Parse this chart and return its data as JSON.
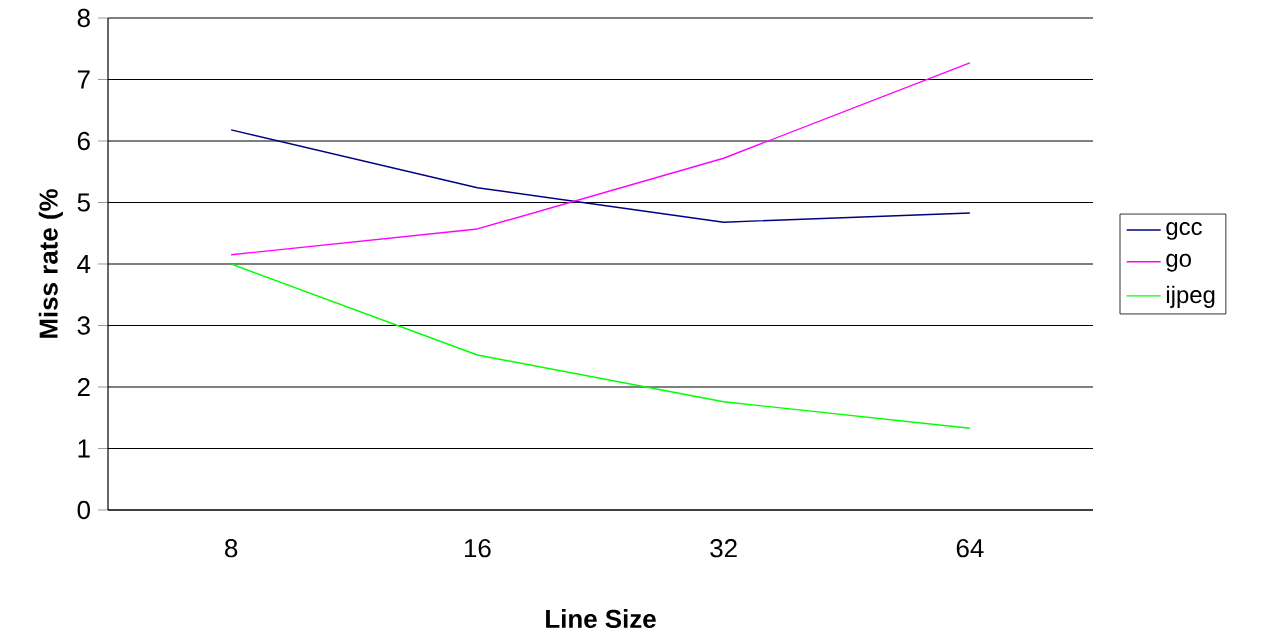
{
  "chart_data": {
    "type": "line",
    "xlabel": "Line Size",
    "ylabel": "Miss rate (%",
    "categories": [
      "8",
      "16",
      "32",
      "64"
    ],
    "series": [
      {
        "name": "gcc",
        "color": "#000080",
        "values": [
          6.18,
          5.24,
          4.68,
          4.83
        ]
      },
      {
        "name": "go",
        "color": "#ff00ff",
        "values": [
          4.15,
          4.57,
          5.72,
          7.27
        ]
      },
      {
        "name": "ijpeg",
        "color": "#00ff00",
        "values": [
          4.0,
          2.52,
          1.76,
          1.33
        ]
      }
    ],
    "ylim": [
      0,
      8
    ],
    "yticks": [
      0,
      1,
      2,
      3,
      4,
      5,
      6,
      7,
      8
    ],
    "grid": "y",
    "legend": "right",
    "marker": "none",
    "line_style": "solid"
  }
}
